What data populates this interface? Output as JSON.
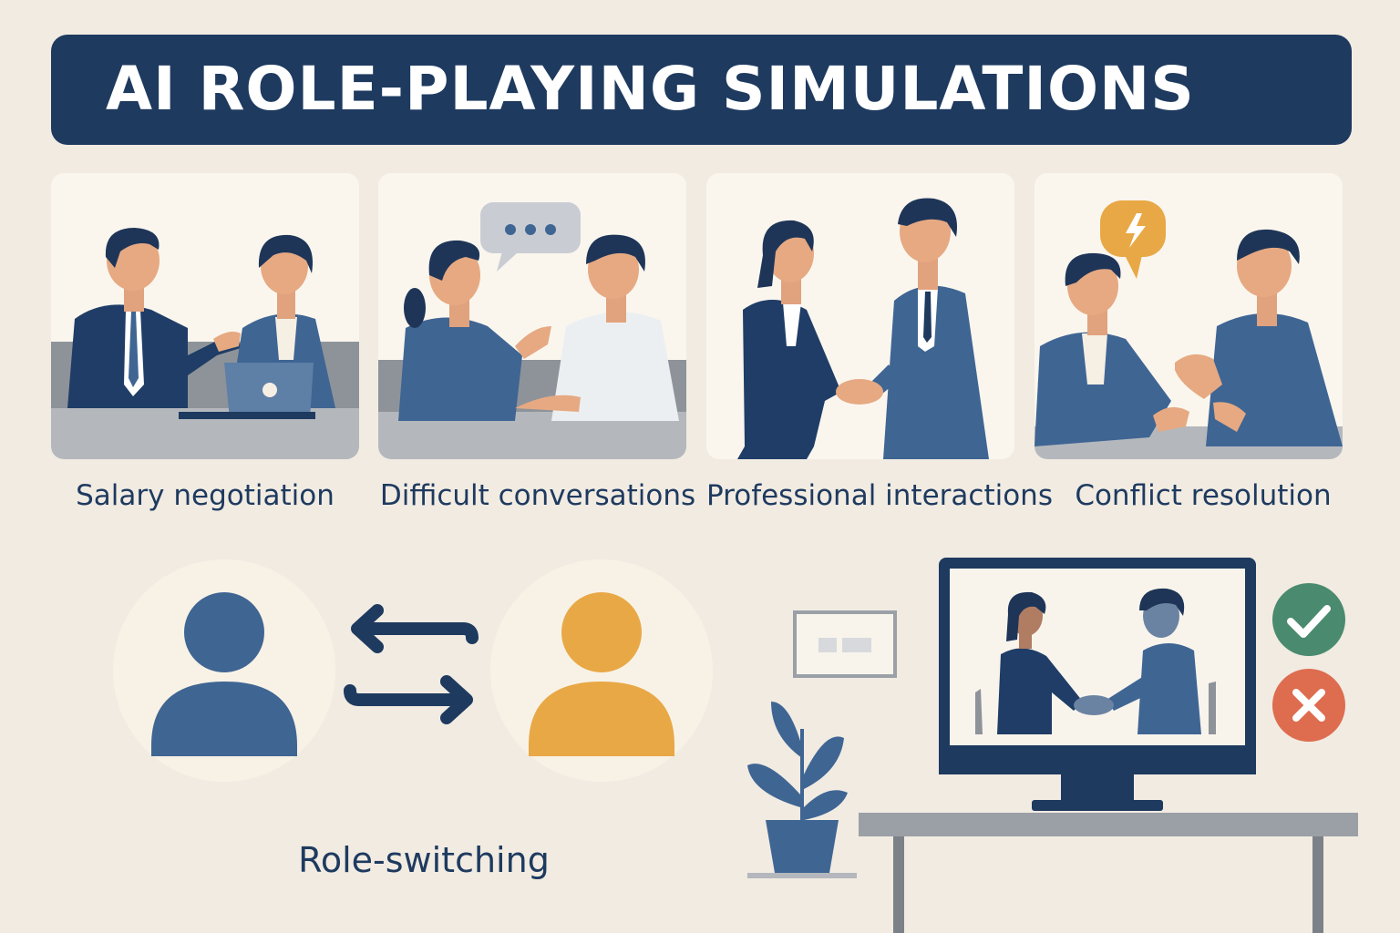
{
  "header": {
    "title": "AI ROLE-PLAYING SIMULATIONS"
  },
  "scenarios": [
    {
      "label": "Salary negotiation",
      "icon": "negotiation-meeting-illustration"
    },
    {
      "label": "Difficult conversations",
      "icon": "conversation-speech-bubble-illustration"
    },
    {
      "label": "Professional interactions",
      "icon": "handshake-illustration"
    },
    {
      "label": "Conflict resolution",
      "icon": "conflict-lightning-bubble-illustration"
    }
  ],
  "role_switching": {
    "label": "Role-switching",
    "user_a_color": "#3f6593",
    "user_b_color": "#e8a845",
    "icons": [
      "person-icon",
      "swap-arrows-icon",
      "person-icon"
    ]
  },
  "video_scene": {
    "icons": [
      "monitor-icon",
      "plant-icon",
      "desk-icon",
      "wall-frame-icon"
    ],
    "feedback": [
      {
        "icon": "check-icon",
        "color": "#4a8a6e"
      },
      {
        "icon": "cross-icon",
        "color": "#de6c4f"
      }
    ]
  },
  "colors": {
    "background": "#f1ebe2",
    "navy": "#1e3a5f",
    "blue": "#3f6593",
    "panel": "#faf6ee"
  }
}
